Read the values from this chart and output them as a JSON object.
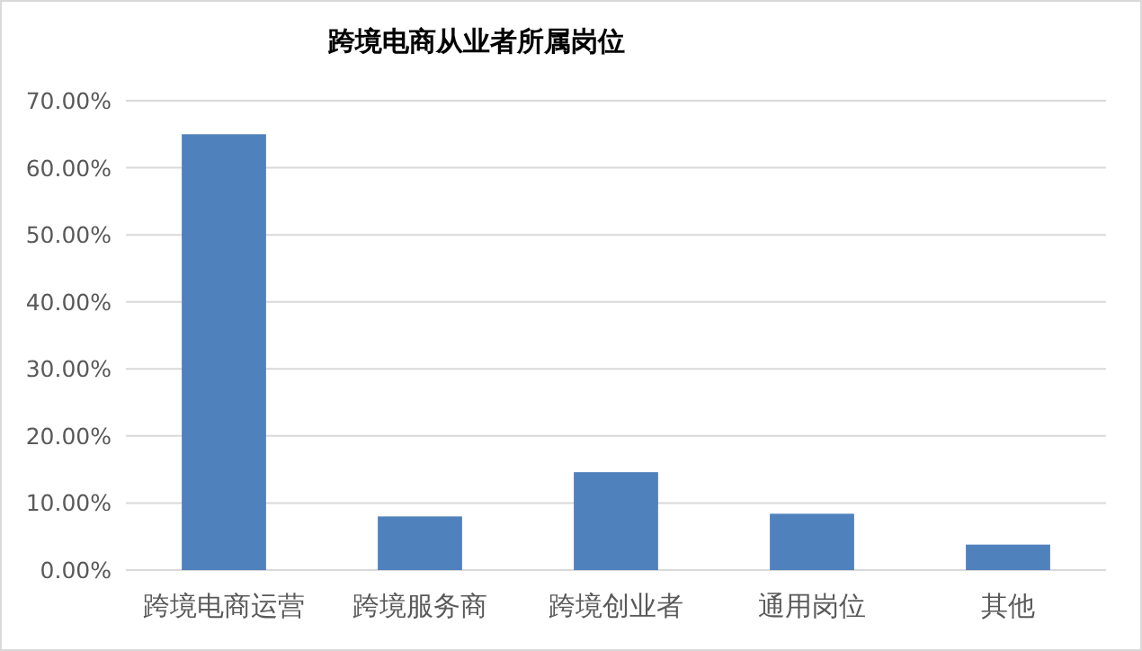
{
  "chart_data": {
    "type": "bar",
    "title": "跨境电商从业者所属岗位",
    "categories": [
      "跨境电商运营",
      "跨境服务商",
      "跨境创业者",
      "通用岗位",
      "其他"
    ],
    "values": [
      65,
      8,
      14.6,
      8.4,
      3.8
    ],
    "color": "#4f81bd",
    "ylim": [
      0,
      70
    ],
    "yticks": [
      {
        "value": 0,
        "label": "0.00%"
      },
      {
        "value": 10,
        "label": "10.00%"
      },
      {
        "value": 20,
        "label": "20.00%"
      },
      {
        "value": 30,
        "label": "30.00%"
      },
      {
        "value": 40,
        "label": "40.00%"
      },
      {
        "value": 50,
        "label": "50.00%"
      },
      {
        "value": 60,
        "label": "60.00%"
      },
      {
        "value": 70,
        "label": "70.00%"
      }
    ],
    "grid": "y"
  }
}
